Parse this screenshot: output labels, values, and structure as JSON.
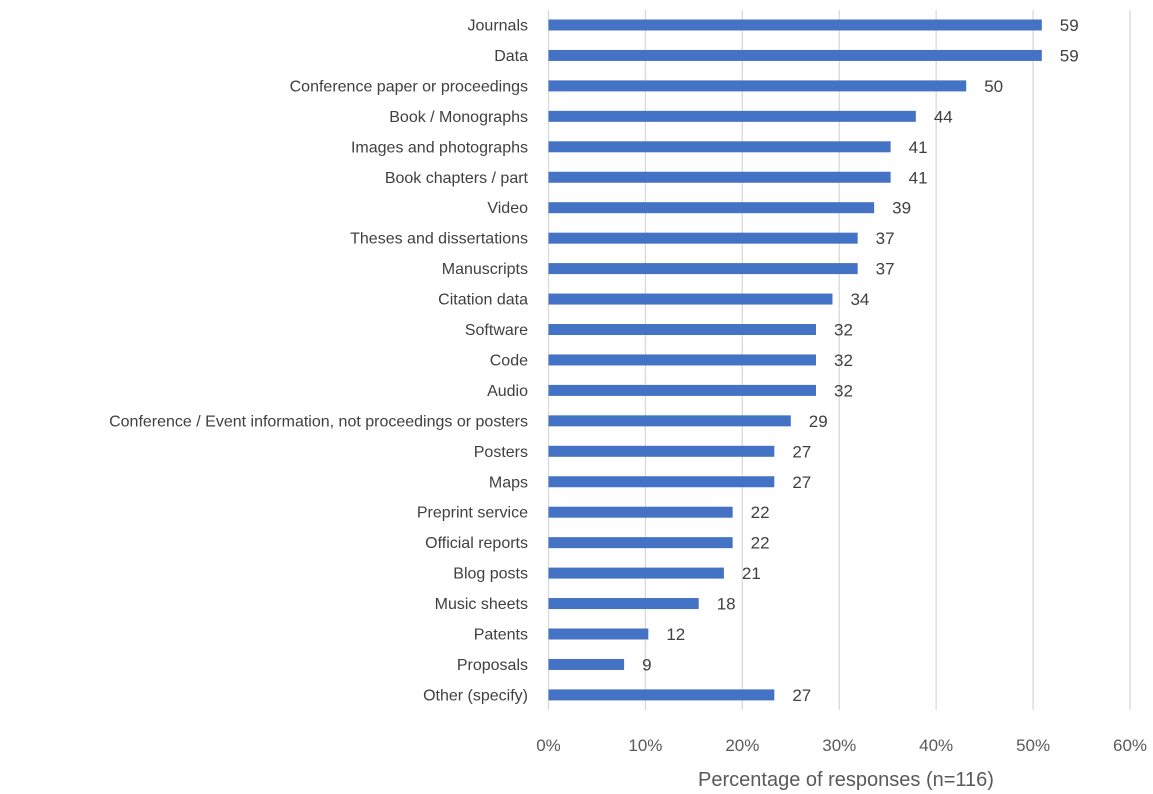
{
  "chart_data": {
    "type": "bar",
    "orientation": "horizontal",
    "categories": [
      "Journals",
      "Data",
      "Conference paper or proceedings",
      "Book / Monographs",
      "Images and photographs",
      "Book chapters / part",
      "Video",
      "Theses and dissertations",
      "Manuscripts",
      "Citation data",
      "Software",
      "Code",
      "Audio",
      "Conference / Event information, not proceedings or posters",
      "Posters",
      "Maps",
      "Preprint service",
      "Official reports",
      "Blog posts",
      "Music sheets",
      "Patents",
      "Proposals",
      "Other (specify)"
    ],
    "data_labels": [
      59,
      59,
      50,
      44,
      41,
      41,
      39,
      37,
      37,
      34,
      32,
      32,
      32,
      29,
      27,
      27,
      22,
      22,
      21,
      18,
      12,
      9,
      27
    ],
    "percentages": [
      50.9,
      50.9,
      43.1,
      37.9,
      35.3,
      35.3,
      33.6,
      31.9,
      31.9,
      29.3,
      27.6,
      27.6,
      27.6,
      25.0,
      23.3,
      23.3,
      19.0,
      19.0,
      18.1,
      15.5,
      10.3,
      7.8,
      23.3
    ],
    "x_ticks": [
      "0%",
      "10%",
      "20%",
      "30%",
      "40%",
      "50%",
      "60%"
    ],
    "xlim": [
      0,
      60
    ],
    "xlabel": "Percentage of responses (n=116)",
    "title": "",
    "ylabel": "",
    "grid": true,
    "legend": false,
    "bar_color": "#4472c4",
    "grid_color": "#d9d9d9"
  }
}
